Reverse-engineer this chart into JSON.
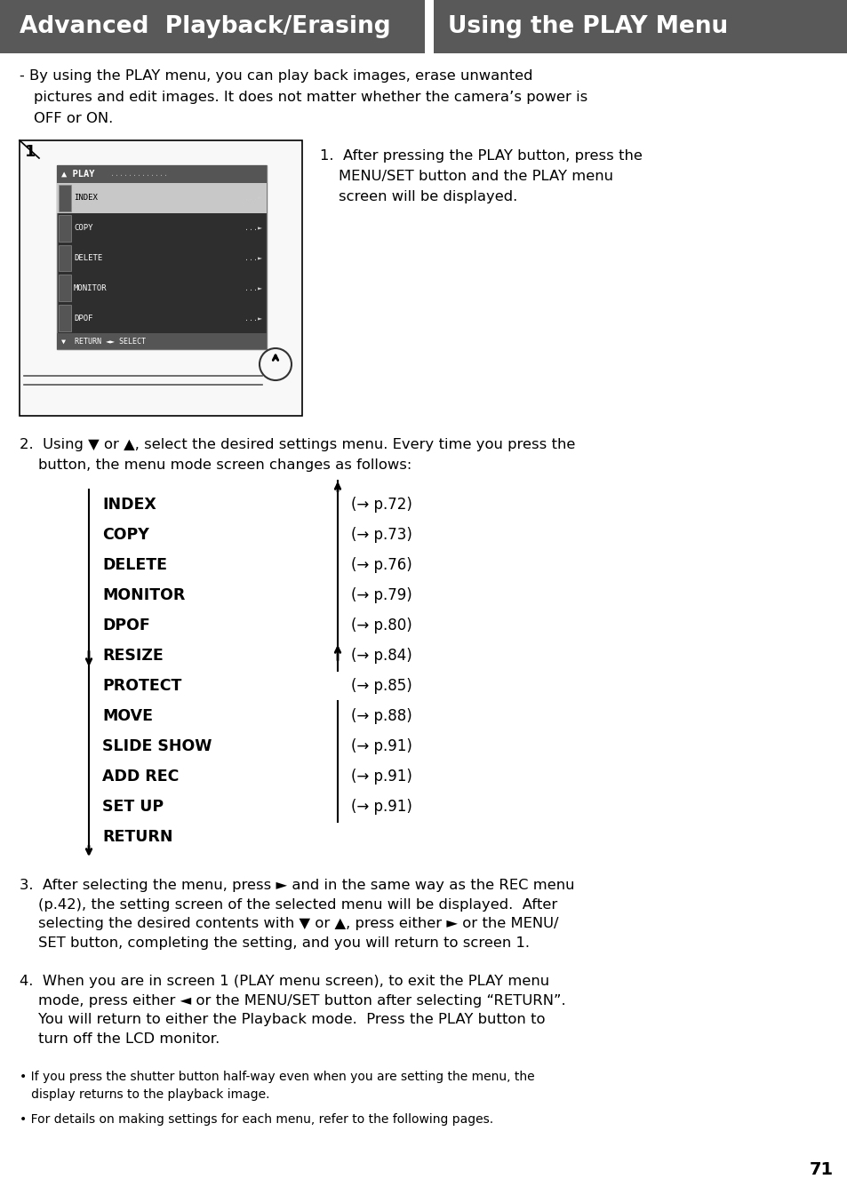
{
  "header_left": "Advanced  Playback/Erasing",
  "header_right": "Using the PLAY Menu",
  "header_bg": "#595959",
  "header_text_color": "#ffffff",
  "bg_color": "#ffffff",
  "text_color": "#000000",
  "page_number": "71",
  "menu_items_left": [
    "INDEX",
    "COPY",
    "DELETE",
    "MONITOR",
    "DPOF",
    "RESIZE",
    "PROTECT",
    "MOVE",
    "SLIDE SHOW",
    "ADD REC",
    "SET UP",
    "RETURN"
  ],
  "menu_items_right": [
    "(→ p.72)",
    "(→ p.73)",
    "(→ p.76)",
    "(→ p.79)",
    "(→ p.80)",
    "(→ p.84)",
    "(→ p.85)",
    "(→ p.88)",
    "(→ p.91)",
    "(→ p.91)",
    "(→ p.91)",
    ""
  ]
}
